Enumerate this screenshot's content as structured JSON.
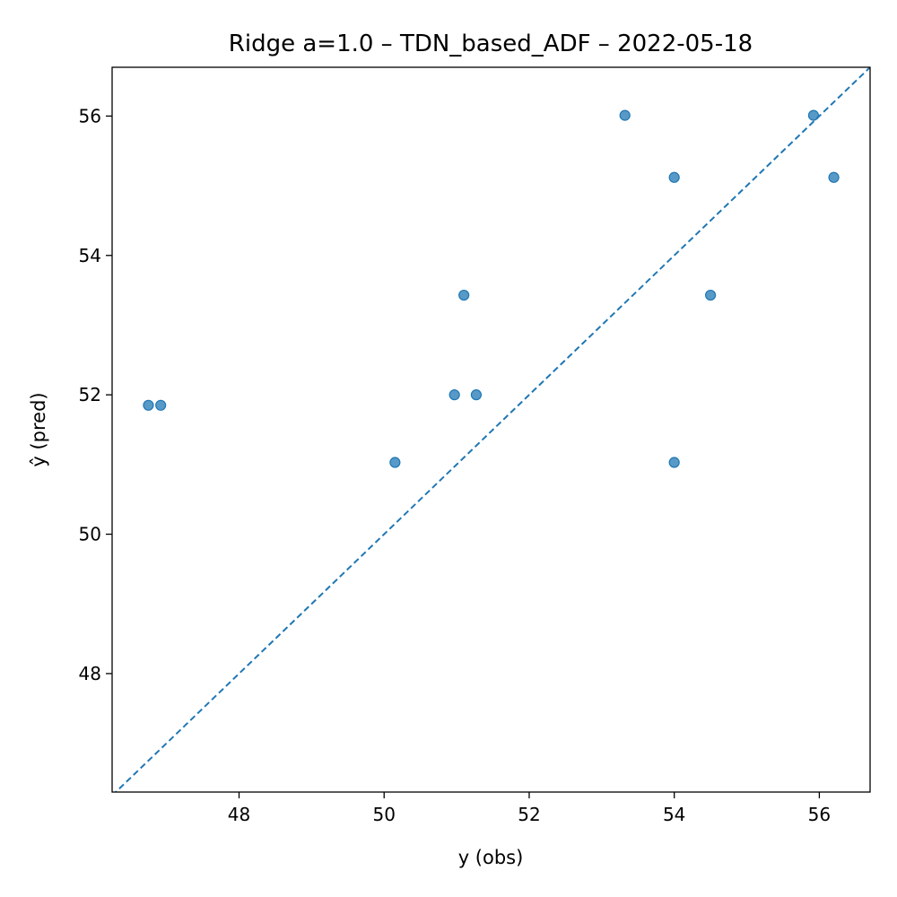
{
  "chart_data": {
    "type": "scatter",
    "title": "Ridge a=1.0 – TDN_based_ADF – 2022-05-18",
    "xlabel": "y (obs)",
    "ylabel": "ŷ (pred)",
    "xlim": [
      46.25,
      56.7
    ],
    "ylim": [
      46.3,
      56.7
    ],
    "xticks": [
      48,
      50,
      52,
      54,
      56
    ],
    "yticks": [
      48,
      50,
      52,
      54,
      56
    ],
    "grid": false,
    "reference_line": {
      "style": "dashed",
      "from": [
        46.25,
        46.25
      ],
      "to": [
        56.7,
        56.7
      ]
    },
    "point_color": "#1f77b4",
    "line_color": "#1f77b4",
    "series": [
      {
        "points": [
          {
            "x": 46.75,
            "y": 51.85
          },
          {
            "x": 46.92,
            "y": 51.85
          },
          {
            "x": 50.15,
            "y": 51.03
          },
          {
            "x": 50.97,
            "y": 52.0
          },
          {
            "x": 51.1,
            "y": 53.43
          },
          {
            "x": 51.27,
            "y": 52.0
          },
          {
            "x": 53.32,
            "y": 56.01
          },
          {
            "x": 54.0,
            "y": 55.12
          },
          {
            "x": 54.0,
            "y": 51.03
          },
          {
            "x": 54.5,
            "y": 53.43
          },
          {
            "x": 55.92,
            "y": 56.01
          },
          {
            "x": 56.2,
            "y": 55.12
          }
        ]
      }
    ]
  }
}
